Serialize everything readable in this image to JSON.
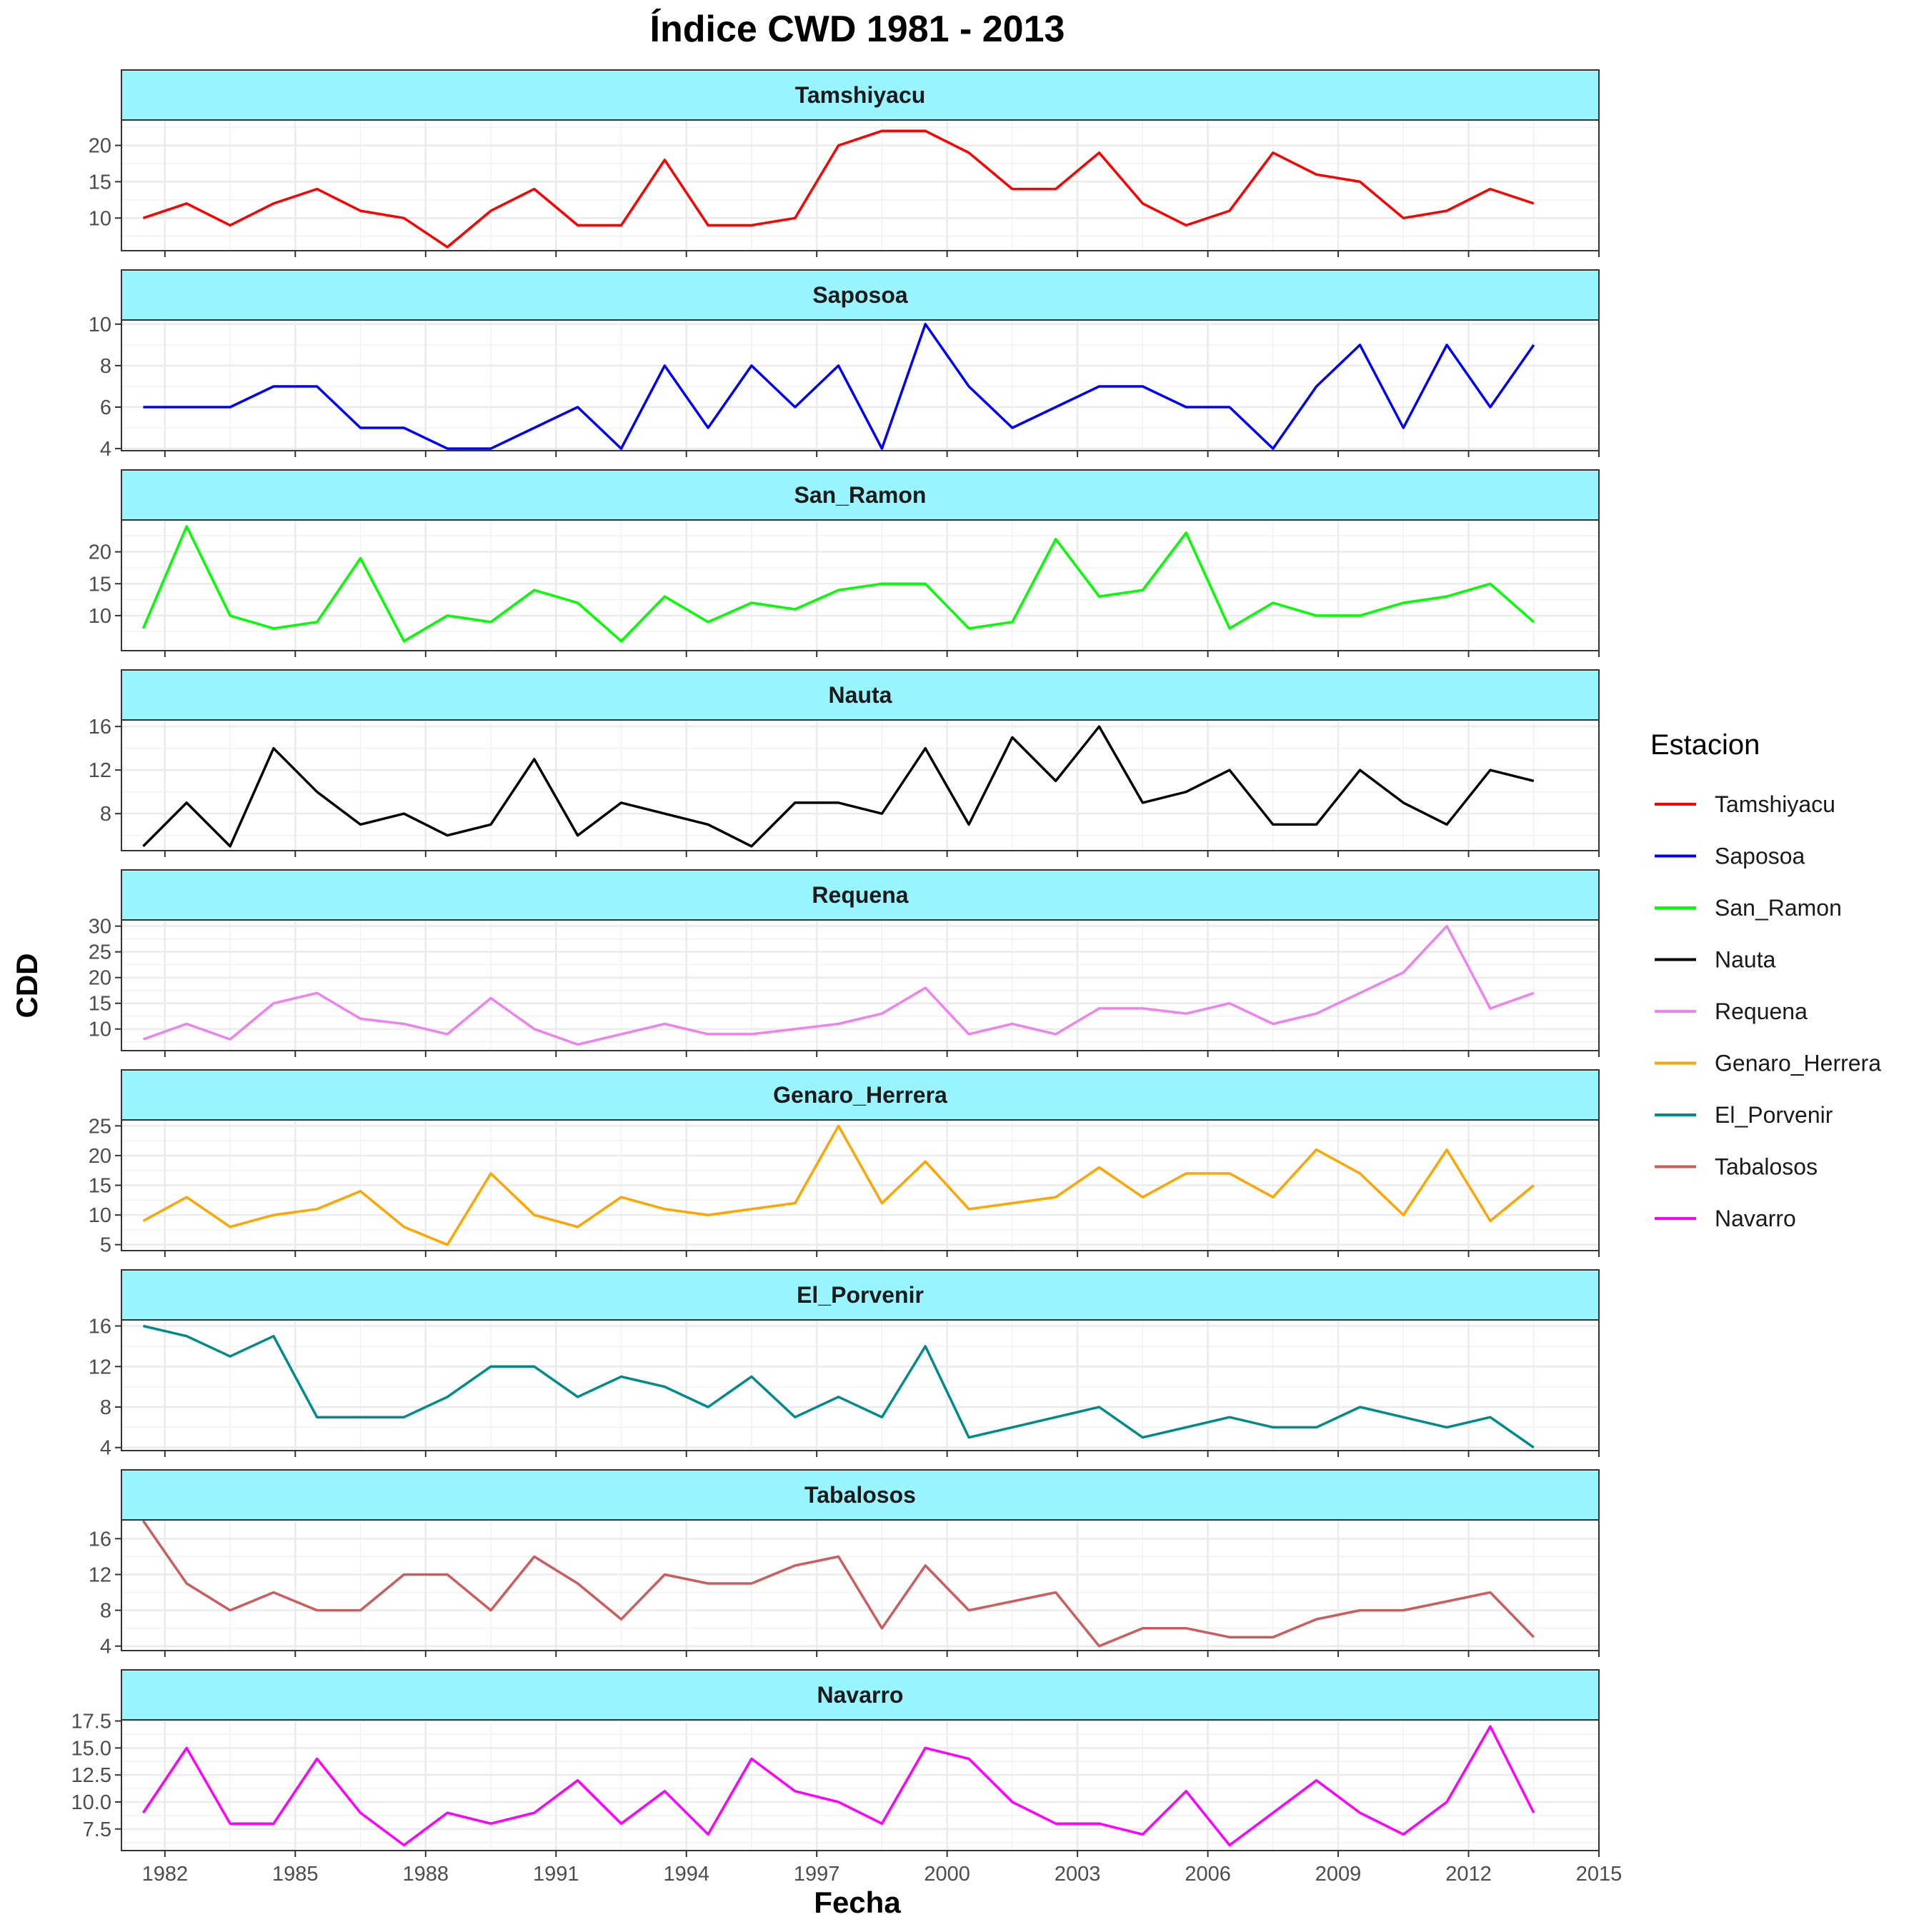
{
  "chart_data": {
    "type": "line",
    "title": "Índice CWD 1981 - 2013",
    "xlabel": "Fecha",
    "ylabel": "CDD",
    "x": [
      1981.5,
      1982.5,
      1983.5,
      1984.5,
      1985.5,
      1986.5,
      1987.5,
      1988.5,
      1989.5,
      1990.5,
      1991.5,
      1992.5,
      1993.5,
      1994.5,
      1995.5,
      1996.5,
      1997.5,
      1998.5,
      1999.5,
      2000.5,
      2001.5,
      2002.5,
      2003.5,
      2004.5,
      2005.5,
      2006.5,
      2007.5,
      2008.5,
      2009.5,
      2010.5,
      2011.5,
      2012.5,
      2013.5
    ],
    "xlim": [
      1981.0,
      2015.0
    ],
    "x_ticks": [
      "1982",
      "1985",
      "1988",
      "1991",
      "1994",
      "1997",
      "2000",
      "2003",
      "2006",
      "2009",
      "2012",
      "2015"
    ],
    "legend": {
      "title": "Estacion",
      "position": "right"
    },
    "grid": true,
    "strip_color": "#98f5ff",
    "series": [
      {
        "name": "Tamshiyacu",
        "color": "#ff0000",
        "ylim": [
          5.5,
          23.5
        ],
        "ticks": [
          "10",
          "15",
          "20"
        ],
        "values": [
          10,
          12,
          9,
          12,
          14,
          11,
          10,
          6,
          11,
          14,
          9,
          9,
          18,
          9,
          9,
          10,
          20,
          22,
          22,
          19,
          14,
          14,
          19,
          12,
          9,
          11,
          19,
          16,
          15,
          10,
          11,
          14,
          12
        ]
      },
      {
        "name": "Saposoa",
        "color": "#0000ff",
        "ylim": [
          3.9,
          10.2
        ],
        "ticks": [
          "4",
          "6",
          "8",
          "10"
        ],
        "values": [
          6,
          6,
          6,
          7,
          7,
          5,
          5,
          4,
          4,
          5,
          6,
          4,
          8,
          5,
          8,
          6,
          8,
          4,
          10,
          7,
          5,
          6,
          7,
          7,
          6,
          6,
          4,
          7,
          9,
          5,
          9,
          6,
          9
        ]
      },
      {
        "name": "San_Ramon",
        "color": "#00ff00",
        "ylim": [
          4.5,
          25.0
        ],
        "ticks": [
          "10",
          "15",
          "20"
        ],
        "values": [
          8,
          24,
          10,
          8,
          9,
          19,
          6,
          10,
          9,
          14,
          12,
          6,
          13,
          9,
          12,
          11,
          14,
          15,
          15,
          8,
          9,
          22,
          13,
          14,
          23,
          8,
          12,
          10,
          10,
          12,
          13,
          15,
          9
        ]
      },
      {
        "name": "Nauta",
        "color": "#000000",
        "ylim": [
          4.6,
          16.6
        ],
        "ticks": [
          "8",
          "12",
          "16"
        ],
        "values": [
          5,
          9,
          5,
          14,
          10,
          7,
          8,
          6,
          7,
          13,
          6,
          9,
          8,
          7,
          5,
          9,
          9,
          8,
          14,
          7,
          15,
          11,
          16,
          9,
          10,
          12,
          7,
          7,
          12,
          9,
          7,
          12,
          11
        ]
      },
      {
        "name": "Requena",
        "color": "#ee82ee",
        "ylim": [
          5.8,
          31.2
        ],
        "ticks": [
          "10",
          "15",
          "20",
          "25",
          "30"
        ],
        "values": [
          8,
          11,
          8,
          15,
          17,
          12,
          11,
          9,
          16,
          10,
          7,
          9,
          11,
          9,
          9,
          10,
          11,
          13,
          18,
          9,
          11,
          9,
          14,
          14,
          13,
          15,
          11,
          13,
          17,
          21,
          30,
          14,
          17
        ]
      },
      {
        "name": "Genaro_Herrera",
        "color": "#ffa500",
        "ylim": [
          4.0,
          26.0
        ],
        "ticks": [
          "5",
          "10",
          "15",
          "20",
          "25"
        ],
        "values": [
          9,
          13,
          8,
          10,
          11,
          14,
          8,
          5,
          17,
          10,
          8,
          13,
          11,
          10,
          11,
          12,
          25,
          12,
          19,
          11,
          12,
          13,
          18,
          13,
          17,
          17,
          13,
          21,
          17,
          10,
          21,
          9,
          15
        ]
      },
      {
        "name": "El_Porvenir",
        "color": "#008b8b",
        "ylim": [
          3.7,
          16.6
        ],
        "ticks": [
          "4",
          "8",
          "12",
          "16"
        ],
        "values": [
          16,
          15,
          13,
          15,
          7,
          7,
          7,
          9,
          12,
          12,
          9,
          11,
          10,
          8,
          11,
          7,
          9,
          7,
          14,
          5,
          6,
          7,
          8,
          5,
          6,
          7,
          6,
          6,
          8,
          7,
          6,
          7,
          4
        ]
      },
      {
        "name": "Tabalosos",
        "color": "#cd5c5c",
        "ylim": [
          3.5,
          18.1
        ],
        "ticks": [
          "4",
          "8",
          "12",
          "16"
        ],
        "values": [
          18,
          11,
          8,
          10,
          8,
          8,
          12,
          12,
          8,
          14,
          11,
          7,
          12,
          11,
          11,
          13,
          14,
          6,
          13,
          8,
          9,
          10,
          4,
          6,
          6,
          5,
          5,
          7,
          8,
          8,
          9,
          10,
          5
        ]
      },
      {
        "name": "Navarro",
        "color": "#ff00ff",
        "ylim": [
          5.5,
          17.6
        ],
        "ticks": [
          "7.5",
          "10.0",
          "12.5",
          "15.0",
          "17.5"
        ],
        "values": [
          9,
          15,
          8,
          8,
          14,
          9,
          6,
          9,
          8,
          9,
          12,
          8,
          11,
          7,
          14,
          11,
          10,
          8,
          15,
          14,
          10,
          8,
          8,
          7,
          11,
          6,
          9,
          12,
          9,
          7,
          10,
          17,
          9
        ]
      }
    ]
  }
}
